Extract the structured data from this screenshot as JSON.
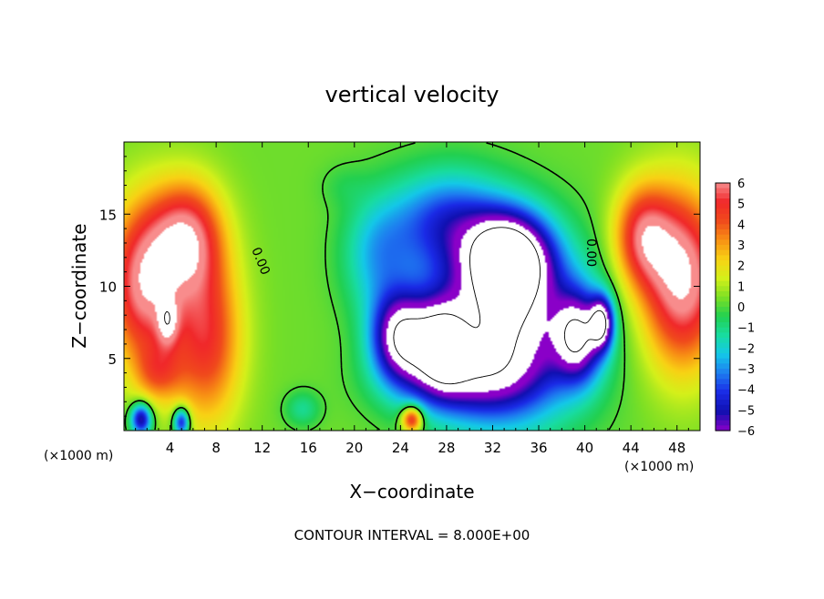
{
  "chart_data": {
    "type": "heatmap",
    "title": "vertical velocity",
    "xlabel": "X−coordinate",
    "ylabel": "Z−coordinate",
    "x_unit_left": "(×1000 m)",
    "x_unit_right": "(×1000 m)",
    "xlim": [
      0,
      50
    ],
    "ylim": [
      0,
      20
    ],
    "x_ticks": [
      "4",
      "8",
      "12",
      "16",
      "20",
      "24",
      "28",
      "32",
      "36",
      "40",
      "44",
      "48"
    ],
    "y_ticks": [
      "5",
      "10",
      "15"
    ],
    "colorbar_ticks": [
      "6",
      "5",
      "4",
      "3",
      "2",
      "1",
      "0",
      "−1",
      "−2",
      "−3",
      "−4",
      "−5",
      "−6"
    ],
    "colorbar_range": [
      -6,
      6
    ],
    "contour_labels": [
      "0.00",
      "0.00"
    ],
    "footer": "CONTOUR INTERVAL = 8.000E+00",
    "colormap": [
      "#8a00c8",
      "#1010b0",
      "#1a2ae6",
      "#1e7cf0",
      "#14c8e8",
      "#18dca0",
      "#22d050",
      "#7ee024",
      "#d4f01a",
      "#f8d214",
      "#f89014",
      "#f04a1c",
      "#f0282a",
      "#f88c8c"
    ],
    "fields": [
      {
        "type": "base",
        "value": 0.3
      },
      {
        "type": "blob",
        "x": 1.8,
        "z": 10.2,
        "v": 6,
        "sx": 3.2,
        "sz": 5.5
      },
      {
        "type": "blob",
        "x": 5.5,
        "z": 13.5,
        "v": 5,
        "sx": 3.0,
        "sz": 3.8
      },
      {
        "type": "blob",
        "x": 7.2,
        "z": 6.5,
        "v": 4.5,
        "sx": 3.0,
        "sz": 6.0
      },
      {
        "type": "blob",
        "x": 3.0,
        "z": 4.0,
        "v": 2.5,
        "sx": 2.0,
        "sz": 2.0
      },
      {
        "type": "blob",
        "x": 3.8,
        "z": 7.5,
        "v": 3.0,
        "sx": 0.9,
        "sz": 1.6
      },
      {
        "type": "blob",
        "x": 1.5,
        "z": 0.8,
        "v": -6.0,
        "sx": 0.9,
        "sz": 1.1
      },
      {
        "type": "blob",
        "x": 5.0,
        "z": 0.6,
        "v": -5.5,
        "sx": 0.7,
        "sz": 1.0
      },
      {
        "type": "blob",
        "x": 33.0,
        "z": 7.0,
        "v": -8,
        "sx": 6.5,
        "sz": 6.0
      },
      {
        "type": "blob",
        "x": 33.5,
        "z": 12.0,
        "v": -8,
        "sx": 3.5,
        "sz": 3.0
      },
      {
        "type": "blob",
        "x": 24.0,
        "z": 6.5,
        "v": -7,
        "sx": 2.5,
        "sz": 3.0
      },
      {
        "type": "blob",
        "x": 27.5,
        "z": 6.0,
        "v": -5.5,
        "sx": 2.2,
        "sz": 3.0
      },
      {
        "type": "blob",
        "x": 39.5,
        "z": 6.5,
        "v": -6,
        "sx": 2.0,
        "sz": 3.0
      },
      {
        "type": "blob",
        "x": 41.5,
        "z": 7.5,
        "v": -6.5,
        "sx": 1.0,
        "sz": 1.8
      },
      {
        "type": "blob",
        "x": 28.0,
        "z": 14.5,
        "v": -4,
        "sx": 5.0,
        "sz": 3.5
      },
      {
        "type": "blob",
        "x": 22.0,
        "z": 12.0,
        "v": -2.5,
        "sx": 3.0,
        "sz": 4.0
      },
      {
        "type": "blob",
        "x": 29.0,
        "z": 3.5,
        "v": -3,
        "sx": 6.0,
        "sz": 2.5
      },
      {
        "type": "blob",
        "x": 25.0,
        "z": 0.8,
        "v": 5.5,
        "sx": 0.9,
        "sz": 0.9
      },
      {
        "type": "blob",
        "x": 48.5,
        "z": 10.5,
        "v": 6.5,
        "sx": 3.5,
        "sz": 6.0
      },
      {
        "type": "blob",
        "x": 45.0,
        "z": 13.5,
        "v": 4.5,
        "sx": 2.5,
        "sz": 3.5
      },
      {
        "type": "blob",
        "x": 15.5,
        "z": 1.5,
        "v": -1.5,
        "sx": 1.5,
        "sz": 1.2
      },
      {
        "type": "blob",
        "x": 19.0,
        "z": 17.0,
        "v": -0.5,
        "sx": 2.0,
        "sz": 1.5
      }
    ]
  }
}
